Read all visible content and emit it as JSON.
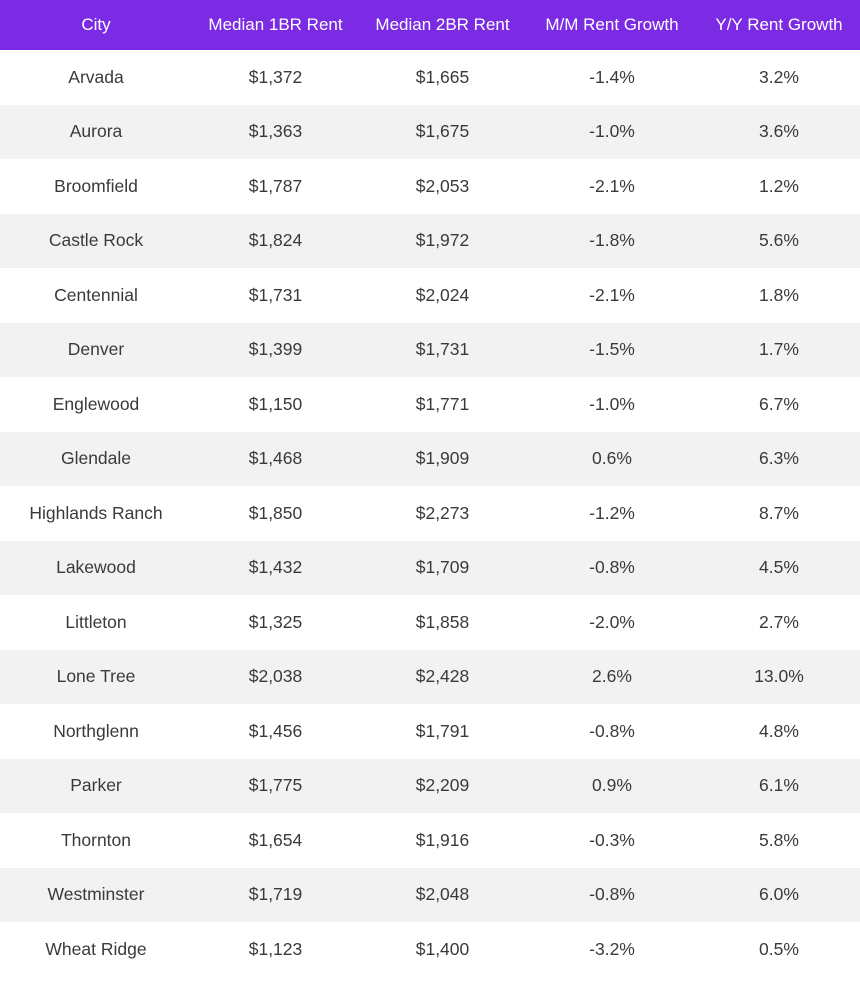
{
  "colors": {
    "header_bg": "#7b2be3",
    "row_odd_bg": "#ffffff",
    "row_even_bg": "#f2f2f2",
    "text": "#3a3a3a",
    "header_text": "#ffffff"
  },
  "chart_data": {
    "type": "table",
    "columns": [
      "City",
      "Median 1BR Rent",
      "Median 2BR Rent",
      "M/M Rent Growth",
      "Y/Y Rent Growth"
    ],
    "rows": [
      [
        "Arvada",
        "$1,372",
        "$1,665",
        "-1.4%",
        "3.2%"
      ],
      [
        "Aurora",
        "$1,363",
        "$1,675",
        "-1.0%",
        "3.6%"
      ],
      [
        "Broomfield",
        "$1,787",
        "$2,053",
        "-2.1%",
        "1.2%"
      ],
      [
        "Castle Rock",
        "$1,824",
        "$1,972",
        "-1.8%",
        "5.6%"
      ],
      [
        "Centennial",
        "$1,731",
        "$2,024",
        "-2.1%",
        "1.8%"
      ],
      [
        "Denver",
        "$1,399",
        "$1,731",
        "-1.5%",
        "1.7%"
      ],
      [
        "Englewood",
        "$1,150",
        "$1,771",
        "-1.0%",
        "6.7%"
      ],
      [
        "Glendale",
        "$1,468",
        "$1,909",
        "0.6%",
        "6.3%"
      ],
      [
        "Highlands Ranch",
        "$1,850",
        "$2,273",
        "-1.2%",
        "8.7%"
      ],
      [
        "Lakewood",
        "$1,432",
        "$1,709",
        "-0.8%",
        "4.5%"
      ],
      [
        "Littleton",
        "$1,325",
        "$1,858",
        "-2.0%",
        "2.7%"
      ],
      [
        "Lone Tree",
        "$2,038",
        "$2,428",
        "2.6%",
        "13.0%"
      ],
      [
        "Northglenn",
        "$1,456",
        "$1,791",
        "-0.8%",
        "4.8%"
      ],
      [
        "Parker",
        "$1,775",
        "$2,209",
        "0.9%",
        "6.1%"
      ],
      [
        "Thornton",
        "$1,654",
        "$1,916",
        "-0.3%",
        "5.8%"
      ],
      [
        "Westminster",
        "$1,719",
        "$2,048",
        "-0.8%",
        "6.0%"
      ],
      [
        "Wheat Ridge",
        "$1,123",
        "$1,400",
        "-3.2%",
        "0.5%"
      ]
    ]
  }
}
